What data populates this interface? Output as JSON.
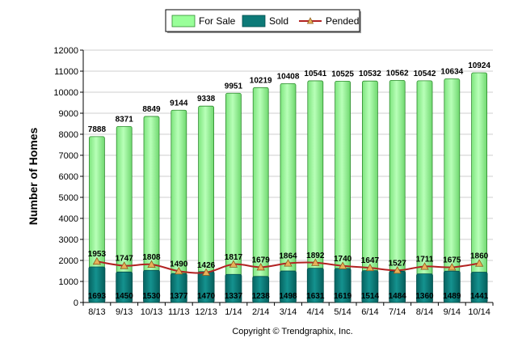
{
  "chart_data": {
    "type": "bar",
    "categories": [
      "8/13",
      "9/13",
      "10/13",
      "11/13",
      "12/13",
      "1/14",
      "2/14",
      "3/14",
      "4/14",
      "5/14",
      "6/14",
      "7/14",
      "8/14",
      "9/14",
      "10/14"
    ],
    "series": [
      {
        "name": "For Sale",
        "type": "bar",
        "color": "#99ff99",
        "values": [
          7888,
          8371,
          8849,
          9144,
          9338,
          9951,
          10219,
          10408,
          10541,
          10525,
          10532,
          10562,
          10542,
          10634,
          10924
        ]
      },
      {
        "name": "Sold",
        "type": "bar",
        "color": "#0d7a78",
        "values": [
          1693,
          1450,
          1530,
          1377,
          1470,
          1337,
          1238,
          1498,
          1631,
          1619,
          1514,
          1484,
          1360,
          1489,
          1441
        ]
      },
      {
        "name": "Pended",
        "type": "line",
        "color": "#b22222",
        "marker_color": "#e8b05a",
        "values": [
          1953,
          1747,
          1808,
          1490,
          1426,
          1817,
          1679,
          1864,
          1892,
          1740,
          1647,
          1527,
          1711,
          1675,
          1860
        ]
      }
    ],
    "title": "",
    "xlabel": "",
    "ylabel": "Number of Homes",
    "ylim": [
      0,
      12000
    ],
    "yticks": [
      0,
      1000,
      2000,
      3000,
      4000,
      5000,
      6000,
      7000,
      8000,
      9000,
      10000,
      11000,
      12000
    ],
    "grid": true,
    "legend": "top-center"
  },
  "footer": {
    "copyright": "Copyright © Trendgraphix, Inc."
  }
}
